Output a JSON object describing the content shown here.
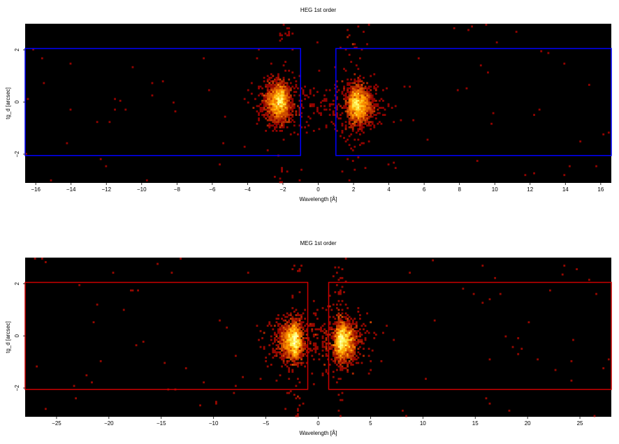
{
  "chart_data": [
    {
      "type": "heatmap",
      "title": "HEG 1st order",
      "xlabel": "Wavelength [Å]",
      "ylabel": "tg_d [arcsec]",
      "xlim": [
        -16.6,
        16.6
      ],
      "ylim": [
        -3.1,
        3.0
      ],
      "xticks": [
        -16,
        -14,
        -12,
        -10,
        -8,
        -6,
        -4,
        -2,
        0,
        2,
        4,
        6,
        8,
        10,
        12,
        14,
        16
      ],
      "yticks": [
        -2,
        0,
        2
      ],
      "region_color": "#0000ff",
      "regions": [
        {
          "x": [
            -16.6,
            -1.0
          ],
          "y": [
            -2.05,
            2.05
          ]
        },
        {
          "x": [
            1.0,
            16.6
          ],
          "y": [
            -2.05,
            2.05
          ]
        }
      ],
      "peaks": [
        {
          "center": -2.0,
          "y": 0.0,
          "width": 0.45
        },
        {
          "center": 2.0,
          "y": -0.1,
          "width": 0.45
        }
      ]
    },
    {
      "type": "heatmap",
      "title": "MEG 1st order",
      "xlabel": "Wavelength [Å]",
      "ylabel": "tg_d [arcsec]",
      "xlim": [
        -28,
        28
      ],
      "ylim": [
        -3.1,
        3.0
      ],
      "xticks": [
        -25,
        -20,
        -15,
        -10,
        -5,
        0,
        5,
        10,
        15,
        20,
        25
      ],
      "yticks": [
        -2,
        0,
        2
      ],
      "region_color": "#cc0000",
      "regions": [
        {
          "x": [
            -28,
            -1.0
          ],
          "y": [
            -2.05,
            2.05
          ]
        },
        {
          "x": [
            1.0,
            28
          ],
          "y": [
            -2.05,
            2.05
          ]
        }
      ],
      "peaks": [
        {
          "center": -2.0,
          "y": -0.2,
          "width": 0.7
        },
        {
          "center": 2.0,
          "y": -0.2,
          "width": 0.7
        }
      ]
    }
  ]
}
